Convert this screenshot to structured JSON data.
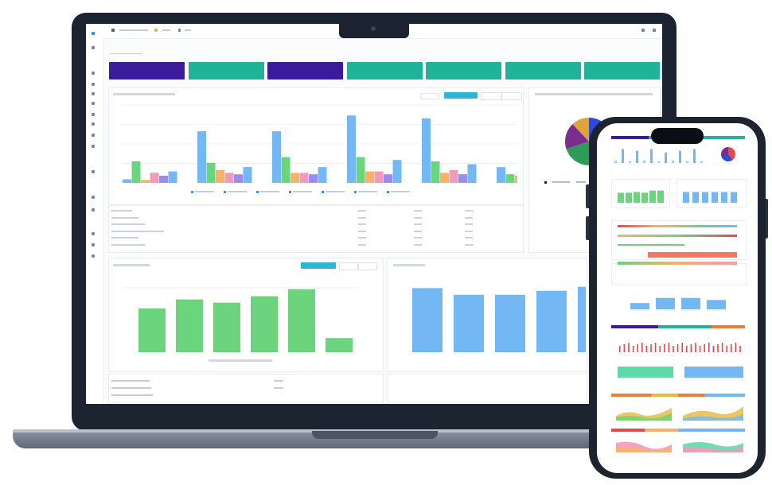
{
  "colors": {
    "purple": "#3b1b9a",
    "teal": "#1fb39a",
    "blue_bar": "#73b8f5",
    "green_bar": "#6bd47c",
    "pink": "#f29bb6",
    "orange": "#f7b267",
    "cyan_btn": "#29b6d9",
    "red": "#e5484d"
  },
  "laptop": {
    "page_title": "",
    "topbar": {
      "items": [
        "",
        "",
        ""
      ]
    },
    "kpi_tiles": [
      {
        "color": "#3b1b9a",
        "label": ""
      },
      {
        "color": "#1fb39a",
        "label": ""
      },
      {
        "color": "#3b1b9a",
        "label": ""
      },
      {
        "color": "#1fb39a",
        "label": ""
      },
      {
        "color": "#1fb39a",
        "label": ""
      },
      {
        "color": "#1fb39a",
        "label": ""
      },
      {
        "color": "#1fb39a",
        "label": ""
      }
    ],
    "bar_chart_card": {
      "title": "",
      "button_label": "",
      "select_label": ""
    },
    "pie_card": {
      "title": ""
    },
    "table": {
      "rows": [
        [
          "",
          "",
          "",
          ""
        ],
        [
          "",
          "",
          "",
          ""
        ],
        [
          "",
          "",
          "",
          ""
        ],
        [
          "",
          "",
          "",
          ""
        ],
        [
          "",
          "",
          "",
          ""
        ],
        [
          "",
          "",
          "",
          ""
        ]
      ]
    },
    "green_chart_card": {
      "title": "",
      "button_label": ""
    },
    "blue_chart_card": {
      "title": ""
    },
    "footer_rows": [
      "",
      "",
      ""
    ]
  },
  "chart_data": [
    {
      "type": "bar",
      "title": "",
      "categories": [
        "",
        "",
        "",
        "",
        "",
        ""
      ],
      "series": [
        {
          "color": "#73b8f5",
          "values": [
            0.05,
            0.72,
            0.72,
            0.94,
            0.9,
            0.22
          ]
        },
        {
          "color": "#6bd47c",
          "values": [
            0.3,
            0.28,
            0.36,
            0.36,
            0.3,
            0.12
          ]
        },
        {
          "color": "#f7b267",
          "values": [
            0.04,
            0.18,
            0.14,
            0.16,
            0.14,
            0.1
          ]
        },
        {
          "color": "#f29bb6",
          "values": [
            0.14,
            0.14,
            0.14,
            0.16,
            0.18,
            0.08
          ]
        },
        {
          "color": "#9b8cf0",
          "values": [
            0.1,
            0.12,
            0.12,
            0.12,
            0.12,
            0.0
          ]
        },
        {
          "color": "#73b8f5",
          "values": [
            0.16,
            0.22,
            0.22,
            0.32,
            0.26,
            0.0
          ]
        }
      ],
      "ylim": [
        0,
        1
      ]
    },
    {
      "type": "bar",
      "title": "",
      "categories": [
        "",
        "",
        "",
        "",
        "",
        ""
      ],
      "values": [
        0.68,
        0.82,
        0.77,
        0.87,
        0.98,
        0.22
      ],
      "ylim": [
        0,
        1
      ]
    },
    {
      "type": "bar",
      "title": "",
      "categories": [
        "",
        "",
        "",
        "",
        ""
      ],
      "values": [
        0.96,
        0.86,
        0.86,
        0.92,
        0.98
      ],
      "ylim": [
        0,
        1
      ]
    },
    {
      "type": "pie",
      "title": "",
      "values": [
        0.26,
        0.24,
        0.2,
        0.18,
        0.12
      ],
      "colors": [
        "#2a4bd7",
        "#e5484d",
        "#2e9c56",
        "#7a2d8f",
        "#e0a43a"
      ]
    }
  ],
  "phone": {
    "sections": [
      "",
      "",
      "",
      "",
      "",
      ""
    ]
  }
}
